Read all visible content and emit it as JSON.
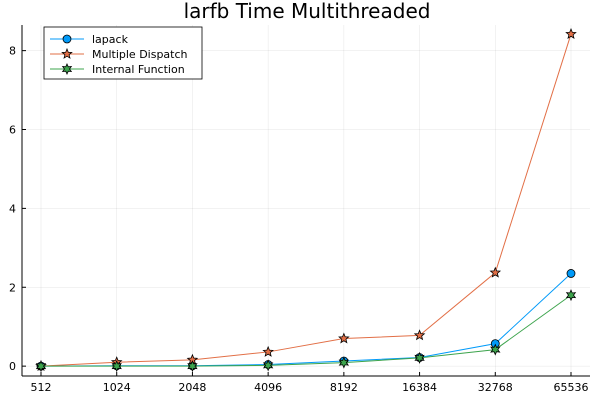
{
  "chart_data": {
    "type": "line",
    "title": "larfb Time Multithreaded",
    "xlabel": "",
    "ylabel": "",
    "categories": [
      "512",
      "1024",
      "2048",
      "4096",
      "8192",
      "16384",
      "32768",
      "65536"
    ],
    "x_scale": "log2",
    "ylim": [
      -0.25,
      8.65
    ],
    "yticks": [
      0,
      2,
      4,
      6,
      8
    ],
    "grid": true,
    "legend_position": "top-left",
    "series": [
      {
        "name": "lapack",
        "color": "#009af9",
        "marker": "circle",
        "values": [
          0.0,
          0.01,
          0.01,
          0.04,
          0.13,
          0.22,
          0.57,
          2.35
        ]
      },
      {
        "name": "Multiple Dispatch",
        "color": "#e26f46",
        "marker": "star5",
        "values": [
          0.0,
          0.1,
          0.16,
          0.36,
          0.7,
          0.78,
          2.37,
          8.42
        ]
      },
      {
        "name": "Internal Function",
        "color": "#3da44d",
        "marker": "star6",
        "values": [
          0.0,
          0.0,
          0.0,
          0.02,
          0.09,
          0.21,
          0.42,
          1.8
        ]
      }
    ]
  }
}
